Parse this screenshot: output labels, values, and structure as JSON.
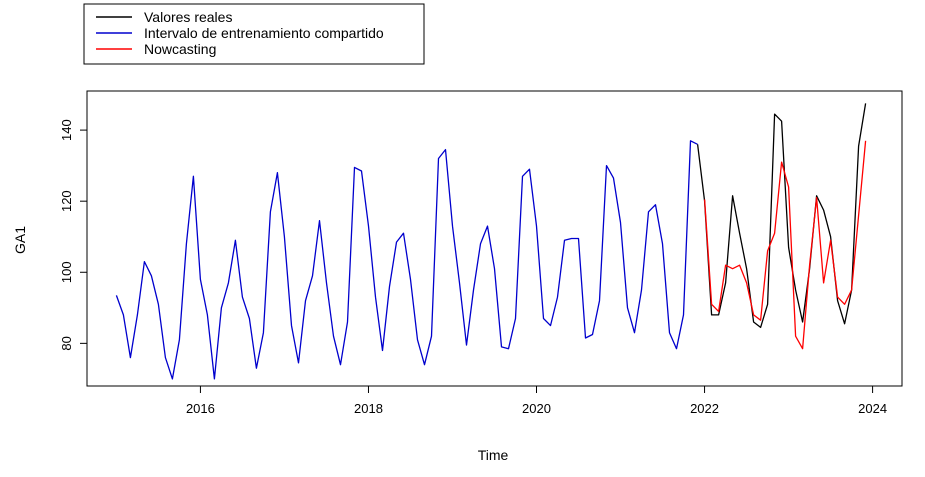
{
  "chart_data": {
    "type": "line",
    "xlabel": "Time",
    "ylabel": "GA1",
    "xlim": [
      2014.65,
      2024.35
    ],
    "ylim": [
      68,
      151
    ],
    "x_ticks": [
      2016,
      2018,
      2020,
      2022,
      2024
    ],
    "x_tick_labels": [
      "2016",
      "2018",
      "2020",
      "2022",
      "2024"
    ],
    "y_ticks": [
      80,
      100,
      120,
      140
    ],
    "y_tick_labels": [
      "80",
      "100",
      "120",
      "140"
    ],
    "legend": {
      "placement": "top-left outside",
      "entries": [
        {
          "label": "Valores reales",
          "color": "#000000"
        },
        {
          "label": "Intervalo de entrenamiento compartido",
          "color": "#0000CD"
        },
        {
          "label": "Nowcasting",
          "color": "#FF0000"
        }
      ]
    },
    "series": [
      {
        "name": "Intervalo de entrenamiento compartido",
        "color": "#0000CD",
        "start": 2015.0,
        "values": [
          93.5,
          88,
          76,
          88,
          103,
          99,
          91,
          76,
          70,
          81,
          108,
          127,
          98,
          88,
          70,
          90,
          97,
          109,
          93,
          87,
          73,
          83,
          117,
          128,
          110,
          85,
          74.5,
          92,
          99,
          114.5,
          97,
          82,
          74,
          86,
          129.5,
          128.5,
          113,
          93,
          78,
          96,
          108.5,
          111,
          98,
          81,
          74,
          82,
          132,
          134.5,
          113,
          97,
          79.5,
          95,
          108,
          113,
          101,
          79,
          78.5,
          87,
          127,
          129,
          113,
          87,
          85,
          93,
          109,
          109.5,
          109.5,
          81.5,
          82.5,
          92,
          130,
          126.5,
          114,
          90,
          83,
          95,
          117,
          119,
          108,
          83,
          78.5,
          88,
          137,
          136
        ]
      },
      {
        "name": "Valores reales",
        "color": "#000000",
        "start": 2021.9167,
        "values": [
          136,
          120,
          88,
          88,
          97,
          121.5,
          111,
          101,
          86,
          84.5,
          91,
          144.5,
          142.5,
          107,
          95,
          86,
          101,
          121.5,
          117.5,
          110,
          92,
          85.5,
          95,
          135.5,
          147.5
        ]
      },
      {
        "name": "Nowcasting",
        "color": "#FF0000",
        "start": 2022.0,
        "values": [
          120.5,
          91,
          89,
          102,
          101,
          102,
          97,
          88,
          86.5,
          106,
          111,
          131,
          124,
          82,
          78.5,
          102,
          121,
          97,
          109,
          93,
          91,
          95,
          116,
          137
        ]
      }
    ]
  }
}
